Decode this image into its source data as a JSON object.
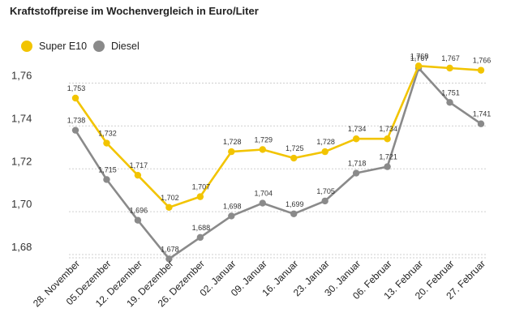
{
  "chart_data": {
    "type": "line",
    "title": "Kraftstoffpreise im Wochenvergleich in Euro/Liter",
    "categories": [
      "28. November",
      "05.Dezember",
      "12. Dezember",
      "19. Dezember",
      "26. Dezember",
      "02. Januar",
      "09. Januar",
      "16. Januar",
      "23. Januar",
      "30. Januar",
      "06. Februar",
      "13. Februar",
      "20. Februar",
      "27. Februar"
    ],
    "series": [
      {
        "name": "Super E10",
        "color": "#f2c400",
        "values": [
          1.753,
          1.732,
          1.717,
          1.702,
          1.707,
          1.728,
          1.729,
          1.725,
          1.728,
          1.734,
          1.734,
          1.768,
          1.767,
          1.766
        ],
        "labels": [
          "1,753",
          "1,732",
          "1,717",
          "1,702",
          "1,707",
          "1,728",
          "1,729",
          "1,725",
          "1,728",
          "1,734",
          "1,734",
          "1,768",
          "1,767",
          "1,766"
        ]
      },
      {
        "name": "Diesel",
        "color": "#8a8a8a",
        "values": [
          1.738,
          1.715,
          1.696,
          1.678,
          1.688,
          1.698,
          1.704,
          1.699,
          1.705,
          1.718,
          1.721,
          1.767,
          1.751,
          1.741
        ],
        "labels": [
          "1,738",
          "1,715",
          "1,696",
          "1,678",
          "1,688",
          "1,698",
          "1,704",
          "1,699",
          "1,705",
          "1,718",
          "1,721",
          "1,767",
          "1,751",
          "1,741"
        ]
      }
    ],
    "yticks": [
      1.68,
      1.7,
      1.72,
      1.74,
      1.76
    ],
    "ytick_labels": [
      "1,68",
      "1,70",
      "1,72",
      "1,74",
      "1,76"
    ],
    "ylim": [
      1.68,
      1.76
    ],
    "grid": true,
    "legend_position": "top-left"
  }
}
